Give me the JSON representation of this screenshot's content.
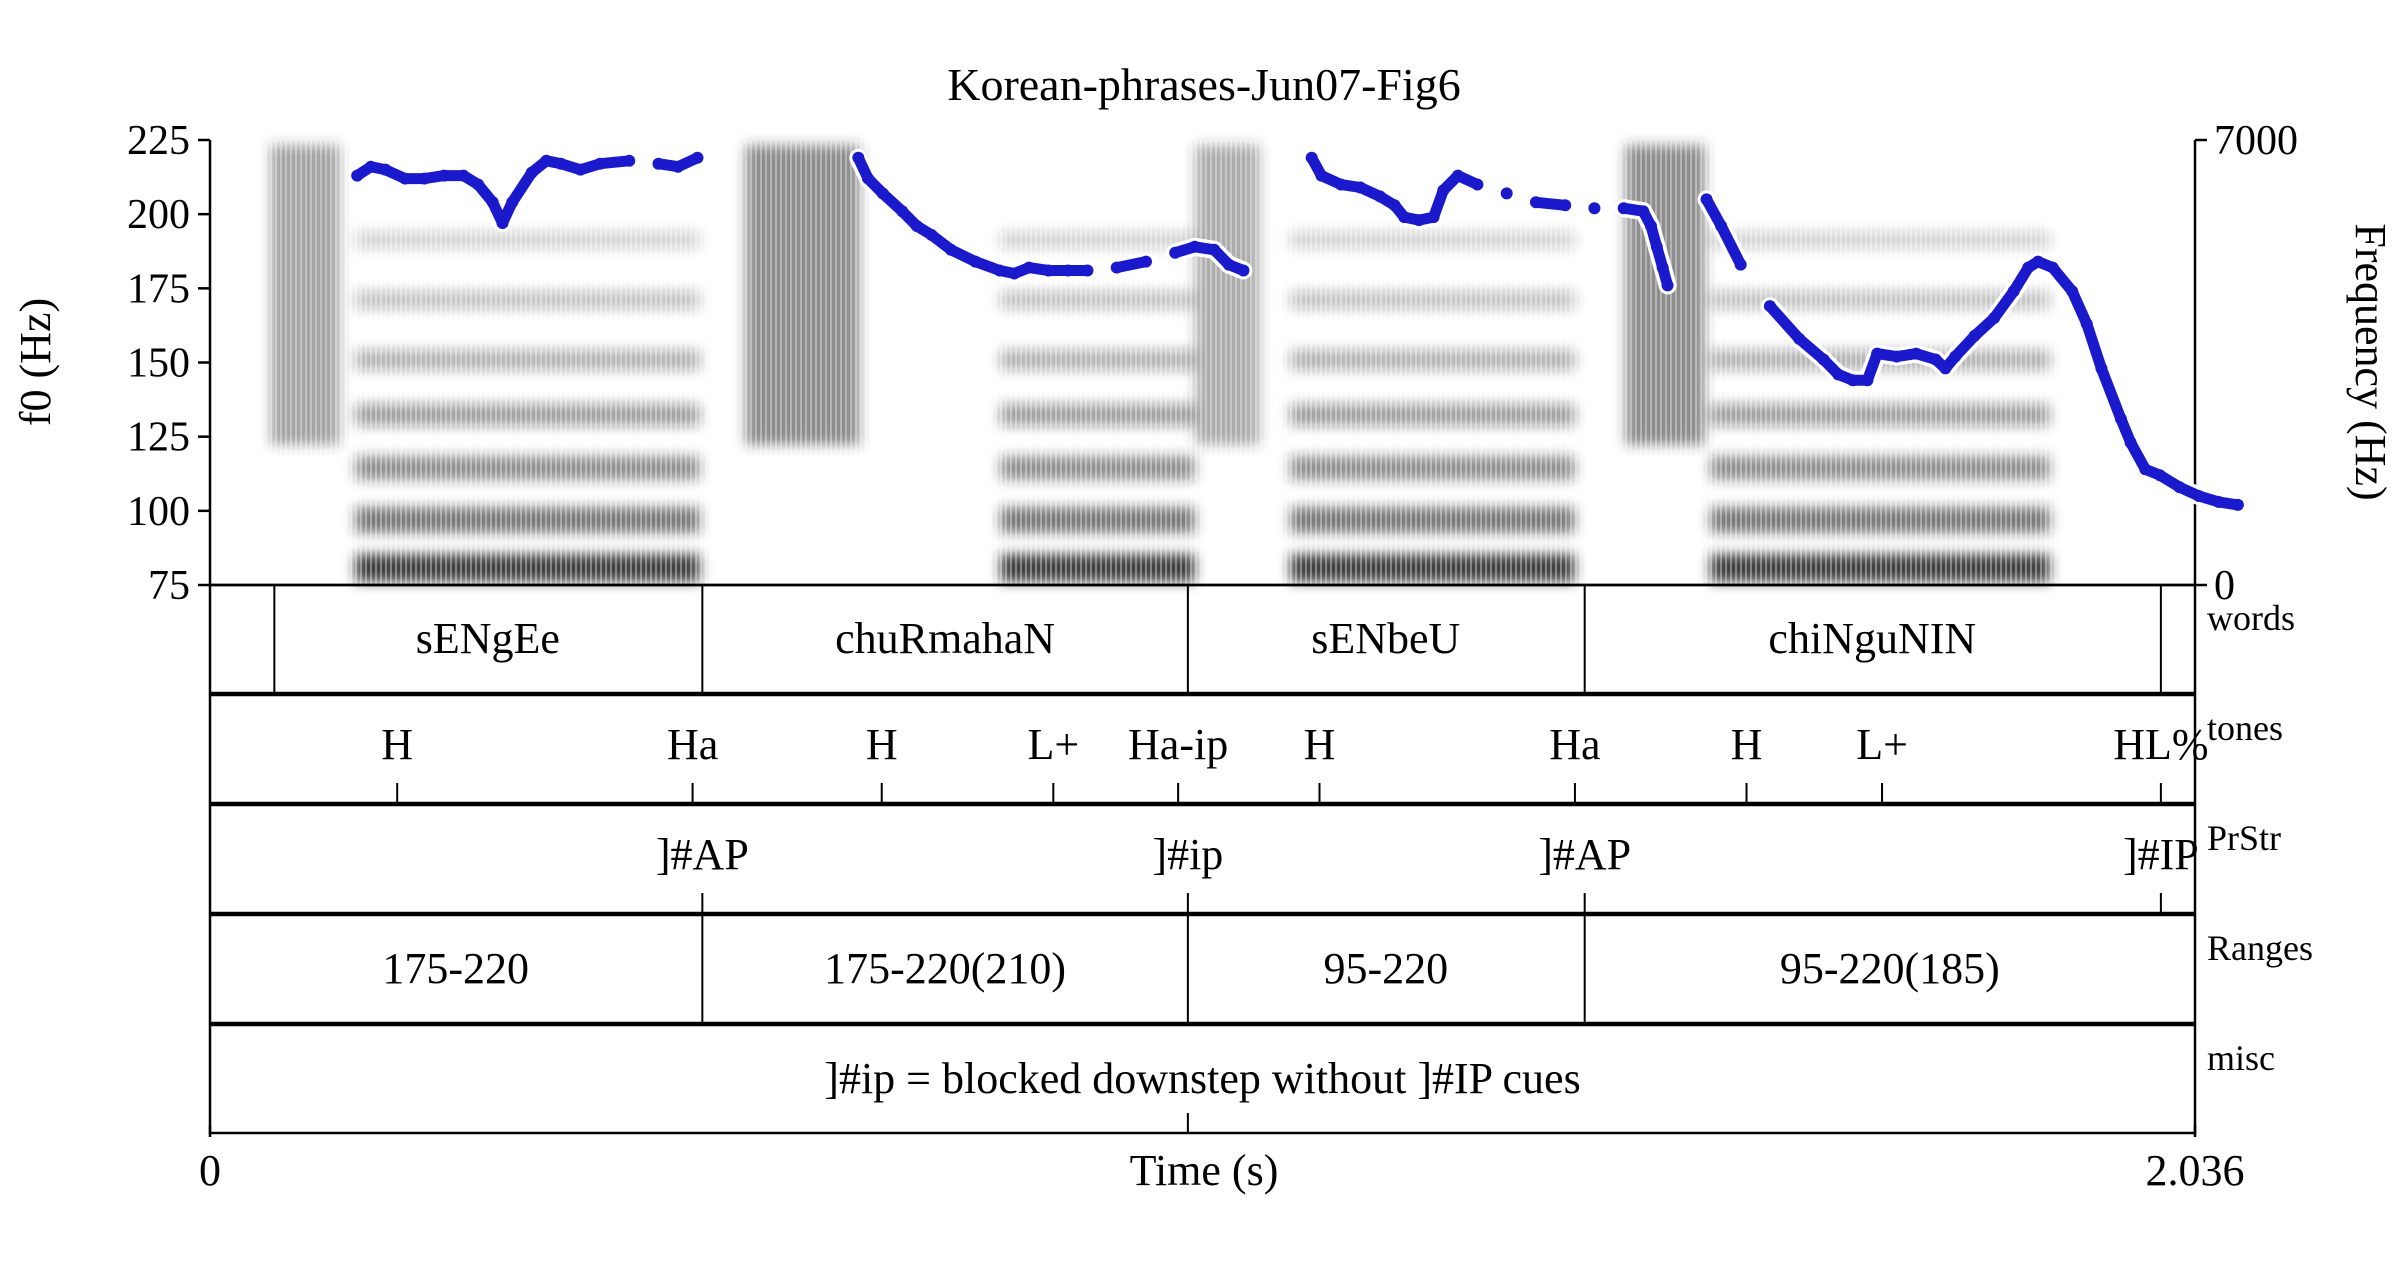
{
  "chart_data": {
    "type": "line",
    "title": "Korean-phrases-Jun07-Fig6",
    "xlabel": "Time (s)",
    "ylabel": "f0 (Hz)",
    "y2label": "Frequency (Hz)",
    "xlim": [
      0,
      2.036
    ],
    "ylim": [
      75,
      225
    ],
    "y2lim": [
      0,
      7000
    ],
    "x_tick_labels": [
      "0",
      "2.036"
    ],
    "y_ticks": [
      75,
      100,
      125,
      150,
      175,
      200,
      225
    ],
    "y2_tick_labels": [
      "7000",
      "0"
    ],
    "grid": false,
    "pitch_color": "#1a1acc",
    "series": [
      {
        "values": [
          [
            0.151,
            213
          ],
          [
            0.165,
            216
          ],
          [
            0.18,
            215
          ],
          [
            0.2,
            212
          ],
          [
            0.22,
            212
          ],
          [
            0.24,
            213
          ],
          [
            0.26,
            213
          ],
          [
            0.275,
            210
          ],
          [
            0.29,
            204
          ],
          [
            0.3,
            197
          ],
          [
            0.31,
            204
          ],
          [
            0.33,
            214
          ],
          [
            0.345,
            218
          ],
          [
            0.36,
            217
          ],
          [
            0.38,
            215
          ],
          [
            0.4,
            217
          ],
          [
            0.43,
            218
          ],
          [
            0.46,
            217
          ],
          [
            0.48,
            216
          ],
          [
            0.5,
            219
          ],
          [
            0.665,
            219
          ],
          [
            0.675,
            212
          ],
          [
            0.69,
            207
          ],
          [
            0.71,
            201
          ],
          [
            0.725,
            196
          ],
          [
            0.74,
            193
          ],
          [
            0.76,
            188
          ],
          [
            0.785,
            184
          ],
          [
            0.81,
            181
          ],
          [
            0.825,
            180
          ],
          [
            0.84,
            182
          ],
          [
            0.86,
            181
          ],
          [
            0.88,
            181
          ],
          [
            0.9,
            181
          ],
          [
            0.93,
            182
          ],
          [
            0.96,
            184
          ],
          [
            0.99,
            187
          ],
          [
            1.01,
            189
          ],
          [
            1.03,
            188
          ],
          [
            1.045,
            183
          ],
          [
            1.06,
            181
          ],
          [
            1.13,
            219
          ],
          [
            1.14,
            213
          ],
          [
            1.16,
            210
          ],
          [
            1.18,
            209
          ],
          [
            1.2,
            206
          ],
          [
            1.215,
            203
          ],
          [
            1.225,
            199
          ],
          [
            1.24,
            198
          ],
          [
            1.255,
            199
          ],
          [
            1.265,
            208
          ],
          [
            1.28,
            213
          ],
          [
            1.3,
            210
          ],
          [
            1.33,
            207
          ],
          [
            1.36,
            204
          ],
          [
            1.39,
            203
          ],
          [
            1.42,
            202
          ],
          [
            1.45,
            202
          ],
          [
            1.47,
            201
          ],
          [
            1.478,
            196
          ],
          [
            1.484,
            189
          ],
          [
            1.49,
            182
          ],
          [
            1.495,
            176
          ],
          [
            1.535,
            205
          ],
          [
            1.55,
            196
          ],
          [
            1.57,
            183
          ],
          [
            1.6,
            169
          ],
          [
            1.63,
            158
          ],
          [
            1.655,
            151
          ],
          [
            1.67,
            146
          ],
          [
            1.685,
            144
          ],
          [
            1.7,
            144
          ],
          [
            1.71,
            153
          ],
          [
            1.73,
            152
          ],
          [
            1.75,
            153
          ],
          [
            1.77,
            151
          ],
          [
            1.78,
            148
          ],
          [
            1.79,
            152
          ],
          [
            1.81,
            159
          ],
          [
            1.83,
            165
          ],
          [
            1.85,
            174
          ],
          [
            1.865,
            182
          ],
          [
            1.875,
            184
          ],
          [
            1.89,
            182
          ],
          [
            1.91,
            174
          ],
          [
            1.925,
            163
          ],
          [
            1.94,
            148
          ],
          [
            1.96,
            131
          ],
          [
            1.97,
            123
          ],
          [
            1.985,
            114
          ],
          [
            2.0,
            112
          ],
          [
            2.02,
            108
          ],
          [
            2.04,
            105
          ],
          [
            2.06,
            103
          ],
          [
            2.08,
            102
          ]
        ]
      }
    ],
    "tiers": [
      {
        "name": "words",
        "boundaries": [
          0.066,
          0.505,
          1.003,
          1.41,
          2.001
        ],
        "labels": [
          {
            "t": 0.285,
            "text": "sENgEe"
          },
          {
            "t": 0.754,
            "text": "chuRmahaN"
          },
          {
            "t": 1.206,
            "text": "sENbeU"
          },
          {
            "t": 1.705,
            "text": "chiNguNIN"
          }
        ]
      },
      {
        "name": "tones",
        "points": [
          {
            "t": 0.192,
            "text": "H"
          },
          {
            "t": 0.495,
            "text": "Ha"
          },
          {
            "t": 0.689,
            "text": "H"
          },
          {
            "t": 0.865,
            "text": "L+"
          },
          {
            "t": 0.993,
            "text": "Ha-ip"
          },
          {
            "t": 1.138,
            "text": "H"
          },
          {
            "t": 1.4,
            "text": "Ha"
          },
          {
            "t": 1.576,
            "text": "H"
          },
          {
            "t": 1.715,
            "text": "L+"
          },
          {
            "t": 2.001,
            "text": "HL%"
          }
        ]
      },
      {
        "name": "PrStr",
        "points": [
          {
            "t": 0.505,
            "text": "]#AP"
          },
          {
            "t": 1.003,
            "text": "]#ip"
          },
          {
            "t": 1.41,
            "text": "]#AP"
          },
          {
            "t": 2.001,
            "text": "]#IP"
          }
        ]
      },
      {
        "name": "Ranges",
        "boundaries": [
          0.505,
          1.003,
          1.41
        ],
        "labels": [
          {
            "t": 0.252,
            "text": "175-220"
          },
          {
            "t": 0.754,
            "text": "175-220(210)"
          },
          {
            "t": 1.206,
            "text": "95-220"
          },
          {
            "t": 1.723,
            "text": "95-220(185)"
          }
        ]
      },
      {
        "name": "misc",
        "boundaries": [],
        "points": [
          {
            "t": 1.003,
            "text": ""
          }
        ],
        "labels": [
          {
            "t": 1.018,
            "text": "]#ip = blocked downstep without ]#IP cues"
          }
        ]
      }
    ]
  }
}
